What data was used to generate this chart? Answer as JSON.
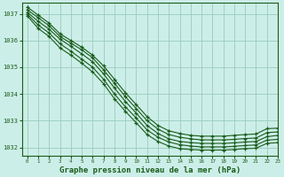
{
  "background_color": "#cceee8",
  "grid_color": "#99ccbb",
  "line_color": "#1a5c1a",
  "xlabel": "Graphe pression niveau de la mer (hPa)",
  "xlabel_fontsize": 6.5,
  "xlim": [
    -0.5,
    23
  ],
  "ylim": [
    1031.7,
    1037.4
  ],
  "yticks": [
    1032,
    1033,
    1034,
    1035,
    1036,
    1037
  ],
  "xticks": [
    0,
    1,
    2,
    3,
    4,
    5,
    6,
    7,
    8,
    9,
    10,
    11,
    12,
    13,
    14,
    15,
    16,
    17,
    18,
    19,
    20,
    21,
    22,
    23
  ],
  "series": [
    [
      1037.25,
      1036.95,
      1036.65,
      1036.25,
      1036.0,
      1035.75,
      1035.45,
      1035.05,
      1034.55,
      1034.05,
      1033.6,
      1033.15,
      1032.82,
      1032.62,
      1032.52,
      1032.45,
      1032.42,
      1032.42,
      1032.42,
      1032.45,
      1032.48,
      1032.5,
      1032.7,
      1032.72
    ],
    [
      1037.15,
      1036.85,
      1036.55,
      1036.15,
      1035.9,
      1035.65,
      1035.35,
      1034.9,
      1034.4,
      1033.9,
      1033.45,
      1033.0,
      1032.68,
      1032.48,
      1032.38,
      1032.32,
      1032.28,
      1032.28,
      1032.28,
      1032.3,
      1032.33,
      1032.35,
      1032.55,
      1032.58
    ],
    [
      1037.05,
      1036.72,
      1036.42,
      1036.05,
      1035.78,
      1035.5,
      1035.2,
      1034.75,
      1034.22,
      1033.72,
      1033.28,
      1032.82,
      1032.52,
      1032.32,
      1032.22,
      1032.18,
      1032.15,
      1032.15,
      1032.15,
      1032.17,
      1032.2,
      1032.22,
      1032.4,
      1032.45
    ],
    [
      1036.98,
      1036.58,
      1036.28,
      1035.88,
      1035.6,
      1035.3,
      1035.0,
      1034.55,
      1034.0,
      1033.52,
      1033.1,
      1032.65,
      1032.38,
      1032.2,
      1032.1,
      1032.05,
      1032.02,
      1032.02,
      1032.02,
      1032.04,
      1032.07,
      1032.09,
      1032.27,
      1032.3
    ],
    [
      1036.92,
      1036.45,
      1036.15,
      1035.72,
      1035.45,
      1035.15,
      1034.82,
      1034.38,
      1033.82,
      1033.35,
      1032.92,
      1032.48,
      1032.22,
      1032.05,
      1031.95,
      1031.92,
      1031.9,
      1031.9,
      1031.9,
      1031.92,
      1031.95,
      1031.97,
      1032.15,
      1032.18
    ]
  ]
}
